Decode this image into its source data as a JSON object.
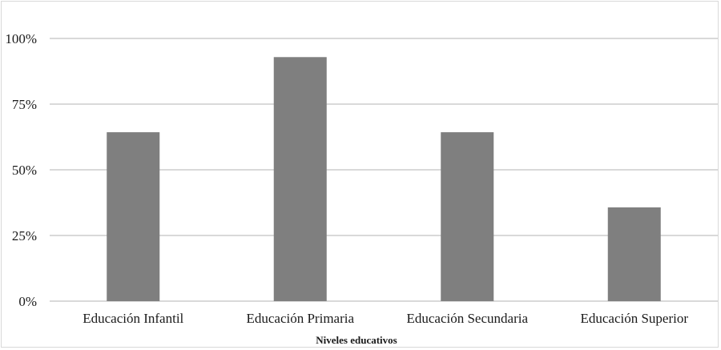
{
  "chart_data": {
    "type": "bar",
    "categories": [
      "Educación Infantil",
      "Educación Primaria",
      "Educación Secundaria",
      "Educación Superior"
    ],
    "values": [
      64.3,
      92.9,
      64.3,
      35.7
    ],
    "title": "",
    "xlabel": "Niveles educativos",
    "ylabel": "",
    "ylim": [
      0,
      100
    ],
    "yticks": [
      0,
      25,
      50,
      75,
      100
    ],
    "ytick_labels": [
      "0%",
      "25%",
      "50%",
      "75%",
      "100%"
    ],
    "grid": true,
    "legend": "none",
    "colors": {
      "bar": "#7f7f7f",
      "gridline": "#d9d9d9",
      "text": "#1a1a1a"
    }
  }
}
